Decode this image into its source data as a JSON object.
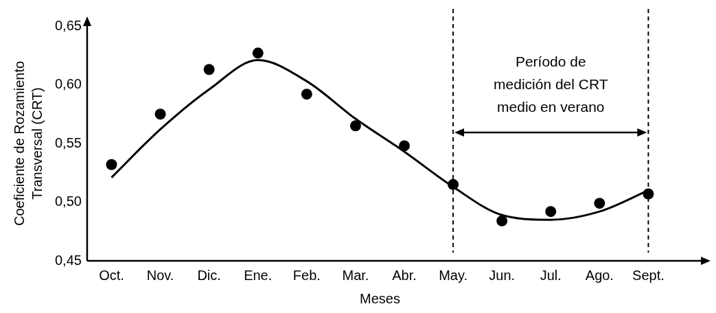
{
  "chart_data": {
    "type": "scatter",
    "xlabel": "Meses",
    "ylabel": "Coeficiente de Rozamiento Transversal (CRT)",
    "categories": [
      "Oct.",
      "Nov.",
      "Dic.",
      "Ene.",
      "Feb.",
      "Mar.",
      "Abr.",
      "May.",
      "Jun.",
      "Jul.",
      "Ago.",
      "Sept."
    ],
    "ylim": [
      0.45,
      0.65
    ],
    "yticks": [
      {
        "value": 0.45,
        "label": "0,45"
      },
      {
        "value": 0.5,
        "label": "0,50"
      },
      {
        "value": 0.55,
        "label": "0,55"
      },
      {
        "value": 0.6,
        "label": "0,60"
      },
      {
        "value": 0.65,
        "label": "0,65"
      }
    ],
    "series": [
      {
        "color": "#000000",
        "marker": "circle",
        "values": [
          0.532,
          0.575,
          0.613,
          0.627,
          0.592,
          0.565,
          0.548,
          0.515,
          0.484,
          0.492,
          0.499,
          0.507
        ]
      },
      {
        "type": "line",
        "color": "#000000",
        "marker": "none",
        "line_style": "solid",
        "values": [
          0.521,
          0.562,
          0.596,
          0.621,
          0.603,
          0.571,
          0.543,
          0.513,
          0.489,
          0.485,
          0.492,
          0.51
        ]
      }
    ],
    "ref_lines": [
      {
        "axis": "x",
        "value": "May.",
        "line_style": "dashed",
        "color": "#000000"
      },
      {
        "axis": "x",
        "value": "Sept.",
        "line_style": "dashed",
        "color": "#000000"
      }
    ],
    "annotations": [
      "Período de medición del CRT medio en verano"
    ]
  }
}
